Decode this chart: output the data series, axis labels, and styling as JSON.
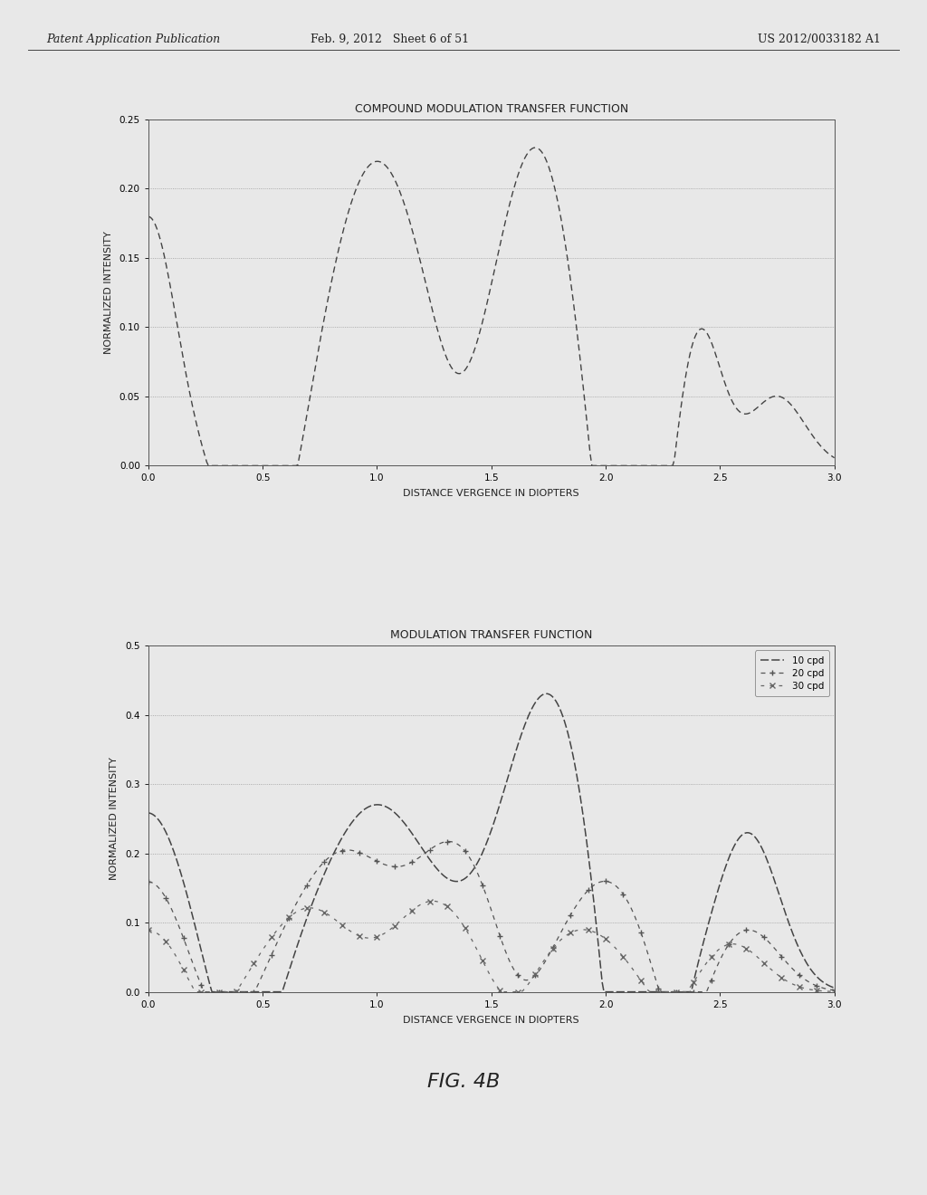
{
  "page_header_left": "Patent Application Publication",
  "page_header_center": "Feb. 9, 2012   Sheet 6 of 51",
  "page_header_right": "US 2012/0033182 A1",
  "fig_label": "FIG. 4B",
  "background_color": "#e8e8e8",
  "plot_bg_color": "#e8e8e8",
  "text_color": "#222222",
  "grid_color": "#999999",
  "top_chart": {
    "title": "COMPOUND MODULATION TRANSFER FUNCTION",
    "xlabel": "DISTANCE VERGENCE IN DIOPTERS",
    "ylabel": "NORMALIZED INTENSITY",
    "xlim": [
      0,
      3
    ],
    "ylim": [
      0,
      0.25
    ],
    "yticks": [
      0,
      0.05,
      0.1,
      0.15,
      0.2,
      0.25
    ],
    "xticks": [
      0,
      0.5,
      1,
      1.5,
      2,
      2.5,
      3
    ]
  },
  "bottom_chart": {
    "title": "MODULATION TRANSFER FUNCTION",
    "xlabel": "DISTANCE VERGENCE IN DIOPTERS",
    "ylabel": "NORMALIZED INTENSITY",
    "xlim": [
      0,
      3
    ],
    "ylim": [
      0,
      0.5
    ],
    "yticks": [
      0,
      0.1,
      0.2,
      0.3,
      0.4,
      0.5
    ],
    "xticks": [
      0,
      0.5,
      1,
      1.5,
      2,
      2.5,
      3
    ],
    "legend_labels": [
      "10 cpd",
      "20 cpd",
      "30 cpd"
    ]
  }
}
